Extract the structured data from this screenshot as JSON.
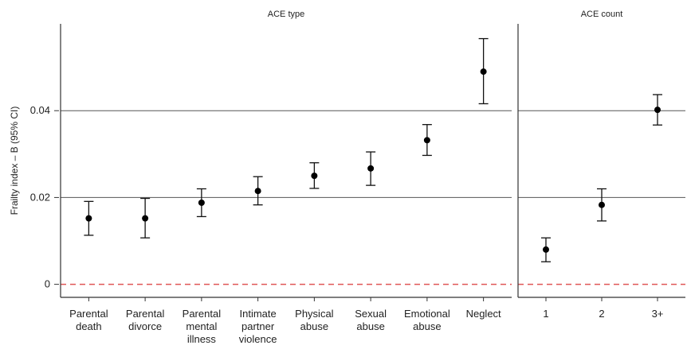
{
  "y_axis_label": "Frailty index – B (95% CI)",
  "chart_data": [
    {
      "type": "scatter",
      "title": "ACE type",
      "ylabel": "Frailty index – B (95% CI)",
      "categories": [
        [
          "Parental",
          "death"
        ],
        [
          "Parental",
          "divorce"
        ],
        [
          "Parental",
          "mental",
          "illness"
        ],
        [
          "Intimate",
          "partner",
          "violence"
        ],
        [
          "Physical",
          "abuse"
        ],
        [
          "Sexual",
          "abuse"
        ],
        [
          "Emotional",
          "abuse"
        ],
        [
          "Neglect"
        ]
      ],
      "points": [
        {
          "y": 0.0152,
          "lower": 0.0113,
          "upper": 0.0191
        },
        {
          "y": 0.0152,
          "lower": 0.0107,
          "upper": 0.0198
        },
        {
          "y": 0.0188,
          "lower": 0.0156,
          "upper": 0.022
        },
        {
          "y": 0.0215,
          "lower": 0.0183,
          "upper": 0.0248
        },
        {
          "y": 0.025,
          "lower": 0.0221,
          "upper": 0.028
        },
        {
          "y": 0.0267,
          "lower": 0.0228,
          "upper": 0.0305
        },
        {
          "y": 0.0332,
          "lower": 0.0297,
          "upper": 0.0368
        },
        {
          "y": 0.049,
          "lower": 0.0416,
          "upper": 0.0566
        }
      ],
      "ylim": [
        -0.003,
        0.06
      ],
      "yticks": [
        "0",
        "0.02",
        "0.04"
      ],
      "reference_lines": [
        0.02,
        0.04
      ],
      "zero_line_color": "#e05555"
    },
    {
      "type": "scatter",
      "title": "ACE count",
      "categories": [
        [
          "1"
        ],
        [
          "2"
        ],
        [
          "3+"
        ]
      ],
      "points": [
        {
          "y": 0.008,
          "lower": 0.0052,
          "upper": 0.0107
        },
        {
          "y": 0.0183,
          "lower": 0.0146,
          "upper": 0.022
        },
        {
          "y": 0.0402,
          "lower": 0.0367,
          "upper": 0.0437
        }
      ],
      "ylim": [
        -0.003,
        0.06
      ],
      "reference_lines": [
        0.02,
        0.04
      ],
      "zero_line_color": "#e05555"
    }
  ]
}
